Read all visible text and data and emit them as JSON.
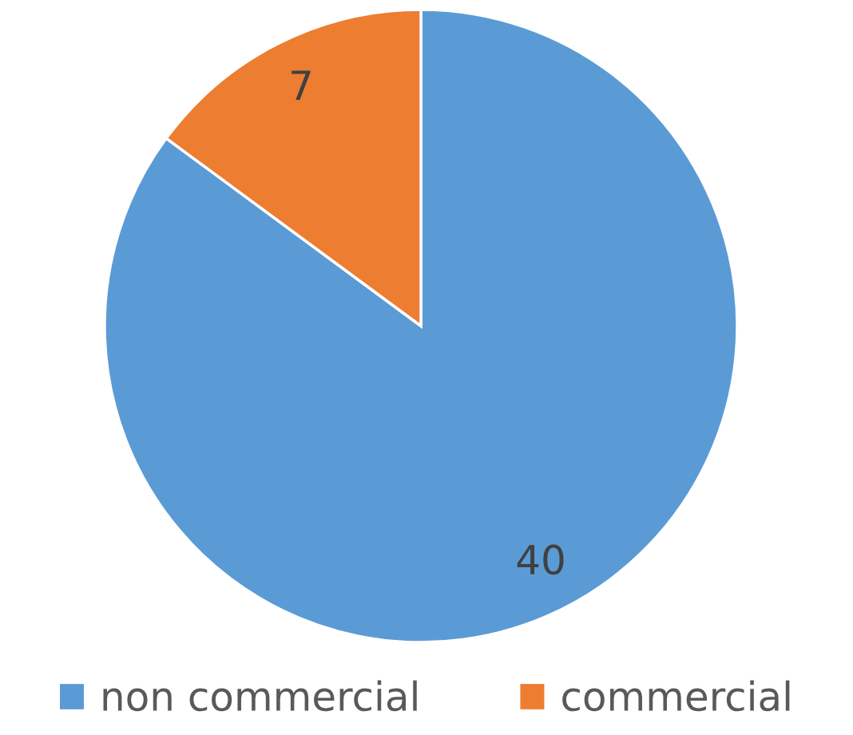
{
  "chart_data": {
    "type": "pie",
    "categories": [
      "non commercial",
      "commercial"
    ],
    "values": [
      40,
      7
    ],
    "colors": [
      "#5b9bd5",
      "#ed7d31"
    ],
    "data_labels": true,
    "legend": "bottom"
  }
}
